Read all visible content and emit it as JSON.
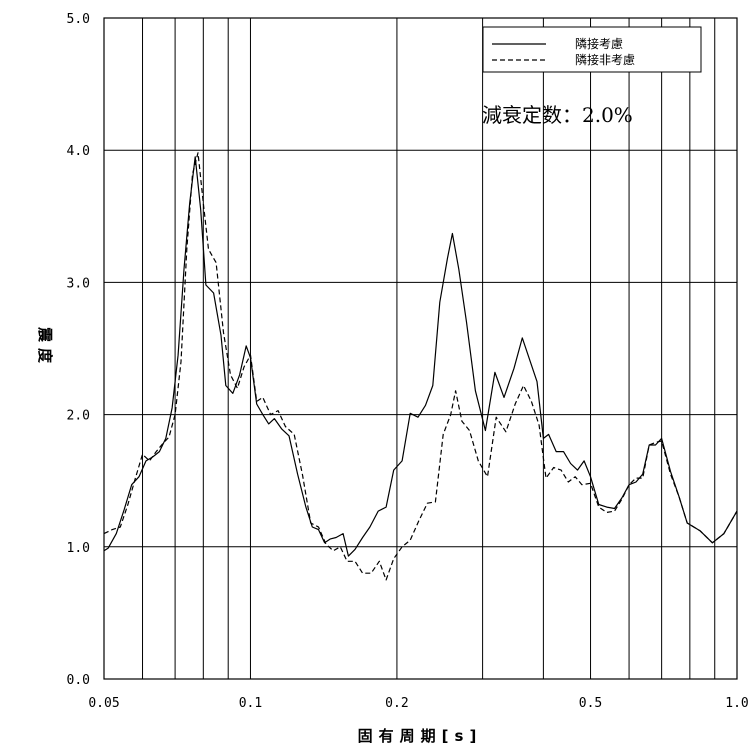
{
  "chart_data": {
    "type": "line",
    "xlabel": "固有周期[s]",
    "ylabel": "震度",
    "x_scale": "log",
    "xlim": [
      0.05,
      1.0
    ],
    "ylim": [
      0.0,
      5.0
    ],
    "x_ticks": [
      {
        "value": 0.05,
        "label": "0.05"
      },
      {
        "value": 0.1,
        "label": "0.1"
      },
      {
        "value": 0.2,
        "label": "0.2"
      },
      {
        "value": 0.5,
        "label": "0.5"
      },
      {
        "value": 1.0,
        "label": "1.0"
      }
    ],
    "x_minor_grid": [
      0.06,
      0.07,
      0.08,
      0.09,
      0.3,
      0.4,
      0.6,
      0.7,
      0.8,
      0.9
    ],
    "y_ticks": [
      {
        "value": 0.0,
        "label": "0.0"
      },
      {
        "value": 1.0,
        "label": "1.0"
      },
      {
        "value": 2.0,
        "label": "2.0"
      },
      {
        "value": 3.0,
        "label": "3.0"
      },
      {
        "value": 4.0,
        "label": "4.0"
      },
      {
        "value": 5.0,
        "label": "5.0"
      }
    ],
    "grid": true,
    "legend_position": "top-right",
    "annotation": "減衰定数：2.0%",
    "series": [
      {
        "name": "隣接考慮",
        "style": "solid",
        "color": "#000000",
        "points": [
          [
            0.05,
            0.97
          ],
          [
            0.051,
            0.99
          ],
          [
            0.053,
            1.1
          ],
          [
            0.055,
            1.28
          ],
          [
            0.057,
            1.47
          ],
          [
            0.059,
            1.53
          ],
          [
            0.061,
            1.65
          ],
          [
            0.063,
            1.68
          ],
          [
            0.065,
            1.72
          ],
          [
            0.067,
            1.82
          ],
          [
            0.069,
            2.05
          ],
          [
            0.071,
            2.45
          ],
          [
            0.073,
            3.1
          ],
          [
            0.075,
            3.6
          ],
          [
            0.077,
            3.95
          ],
          [
            0.079,
            3.55
          ],
          [
            0.081,
            2.98
          ],
          [
            0.084,
            2.92
          ],
          [
            0.087,
            2.6
          ],
          [
            0.089,
            2.22
          ],
          [
            0.092,
            2.16
          ],
          [
            0.095,
            2.3
          ],
          [
            0.098,
            2.52
          ],
          [
            0.1,
            2.43
          ],
          [
            0.103,
            2.08
          ],
          [
            0.106,
            2.0
          ],
          [
            0.109,
            1.93
          ],
          [
            0.112,
            1.97
          ],
          [
            0.116,
            1.89
          ],
          [
            0.12,
            1.84
          ],
          [
            0.125,
            1.55
          ],
          [
            0.13,
            1.3
          ],
          [
            0.134,
            1.15
          ],
          [
            0.138,
            1.13
          ],
          [
            0.142,
            1.03
          ],
          [
            0.146,
            1.06
          ],
          [
            0.15,
            1.07
          ],
          [
            0.155,
            1.1
          ],
          [
            0.159,
            0.93
          ],
          [
            0.164,
            0.98
          ],
          [
            0.17,
            1.07
          ],
          [
            0.176,
            1.15
          ],
          [
            0.183,
            1.27
          ],
          [
            0.19,
            1.3
          ],
          [
            0.197,
            1.58
          ],
          [
            0.205,
            1.65
          ],
          [
            0.213,
            2.01
          ],
          [
            0.221,
            1.98
          ],
          [
            0.229,
            2.07
          ],
          [
            0.237,
            2.22
          ],
          [
            0.245,
            2.85
          ],
          [
            0.254,
            3.18
          ],
          [
            0.26,
            3.37
          ],
          [
            0.268,
            3.1
          ],
          [
            0.278,
            2.7
          ],
          [
            0.29,
            2.18
          ],
          [
            0.304,
            1.88
          ],
          [
            0.318,
            2.32
          ],
          [
            0.332,
            2.13
          ],
          [
            0.348,
            2.35
          ],
          [
            0.362,
            2.58
          ],
          [
            0.376,
            2.4
          ],
          [
            0.388,
            2.25
          ],
          [
            0.4,
            1.82
          ],
          [
            0.41,
            1.85
          ],
          [
            0.425,
            1.72
          ],
          [
            0.44,
            1.72
          ],
          [
            0.455,
            1.63
          ],
          [
            0.47,
            1.58
          ],
          [
            0.485,
            1.65
          ],
          [
            0.5,
            1.53
          ],
          [
            0.52,
            1.32
          ],
          [
            0.54,
            1.3
          ],
          [
            0.56,
            1.29
          ],
          [
            0.58,
            1.37
          ],
          [
            0.6,
            1.47
          ],
          [
            0.62,
            1.49
          ],
          [
            0.64,
            1.55
          ],
          [
            0.66,
            1.77
          ],
          [
            0.68,
            1.77
          ],
          [
            0.7,
            1.82
          ],
          [
            0.73,
            1.57
          ],
          [
            0.76,
            1.38
          ],
          [
            0.79,
            1.18
          ],
          [
            0.84,
            1.12
          ],
          [
            0.89,
            1.03
          ],
          [
            0.94,
            1.1
          ],
          [
            1.0,
            1.27
          ]
        ]
      },
      {
        "name": "隣接非考慮",
        "style": "dashed",
        "color": "#000000",
        "points": [
          [
            0.05,
            1.1
          ],
          [
            0.052,
            1.13
          ],
          [
            0.054,
            1.15
          ],
          [
            0.056,
            1.32
          ],
          [
            0.058,
            1.52
          ],
          [
            0.06,
            1.7
          ],
          [
            0.062,
            1.65
          ],
          [
            0.064,
            1.72
          ],
          [
            0.066,
            1.78
          ],
          [
            0.068,
            1.83
          ],
          [
            0.07,
            2.0
          ],
          [
            0.072,
            2.4
          ],
          [
            0.074,
            3.25
          ],
          [
            0.076,
            3.82
          ],
          [
            0.078,
            3.98
          ],
          [
            0.08,
            3.6
          ],
          [
            0.082,
            3.25
          ],
          [
            0.085,
            3.15
          ],
          [
            0.088,
            2.62
          ],
          [
            0.091,
            2.3
          ],
          [
            0.094,
            2.2
          ],
          [
            0.097,
            2.36
          ],
          [
            0.1,
            2.45
          ],
          [
            0.103,
            2.1
          ],
          [
            0.106,
            2.13
          ],
          [
            0.11,
            2.0
          ],
          [
            0.114,
            2.03
          ],
          [
            0.118,
            1.91
          ],
          [
            0.123,
            1.85
          ],
          [
            0.128,
            1.54
          ],
          [
            0.133,
            1.18
          ],
          [
            0.138,
            1.15
          ],
          [
            0.143,
            1.02
          ],
          [
            0.148,
            0.97
          ],
          [
            0.153,
            1.0
          ],
          [
            0.158,
            0.89
          ],
          [
            0.164,
            0.89
          ],
          [
            0.17,
            0.8
          ],
          [
            0.177,
            0.8
          ],
          [
            0.184,
            0.89
          ],
          [
            0.19,
            0.75
          ],
          [
            0.197,
            0.91
          ],
          [
            0.205,
            1.0
          ],
          [
            0.213,
            1.05
          ],
          [
            0.222,
            1.2
          ],
          [
            0.231,
            1.33
          ],
          [
            0.24,
            1.34
          ],
          [
            0.249,
            1.85
          ],
          [
            0.258,
            2.0
          ],
          [
            0.264,
            2.18
          ],
          [
            0.272,
            1.95
          ],
          [
            0.282,
            1.88
          ],
          [
            0.294,
            1.65
          ],
          [
            0.307,
            1.53
          ],
          [
            0.32,
            1.98
          ],
          [
            0.335,
            1.87
          ],
          [
            0.35,
            2.08
          ],
          [
            0.364,
            2.22
          ],
          [
            0.378,
            2.1
          ],
          [
            0.392,
            1.92
          ],
          [
            0.405,
            1.52
          ],
          [
            0.42,
            1.6
          ],
          [
            0.435,
            1.58
          ],
          [
            0.45,
            1.49
          ],
          [
            0.465,
            1.53
          ],
          [
            0.48,
            1.47
          ],
          [
            0.5,
            1.48
          ],
          [
            0.52,
            1.3
          ],
          [
            0.54,
            1.26
          ],
          [
            0.56,
            1.27
          ],
          [
            0.58,
            1.36
          ],
          [
            0.6,
            1.47
          ],
          [
            0.62,
            1.52
          ],
          [
            0.64,
            1.52
          ],
          [
            0.66,
            1.77
          ],
          [
            0.68,
            1.79
          ],
          [
            0.7,
            1.8
          ],
          [
            0.73,
            1.55
          ],
          [
            0.76,
            1.38
          ],
          [
            0.79,
            1.18
          ],
          [
            0.84,
            1.12
          ],
          [
            0.89,
            1.03
          ],
          [
            0.94,
            1.1
          ],
          [
            1.0,
            1.27
          ]
        ]
      }
    ]
  }
}
